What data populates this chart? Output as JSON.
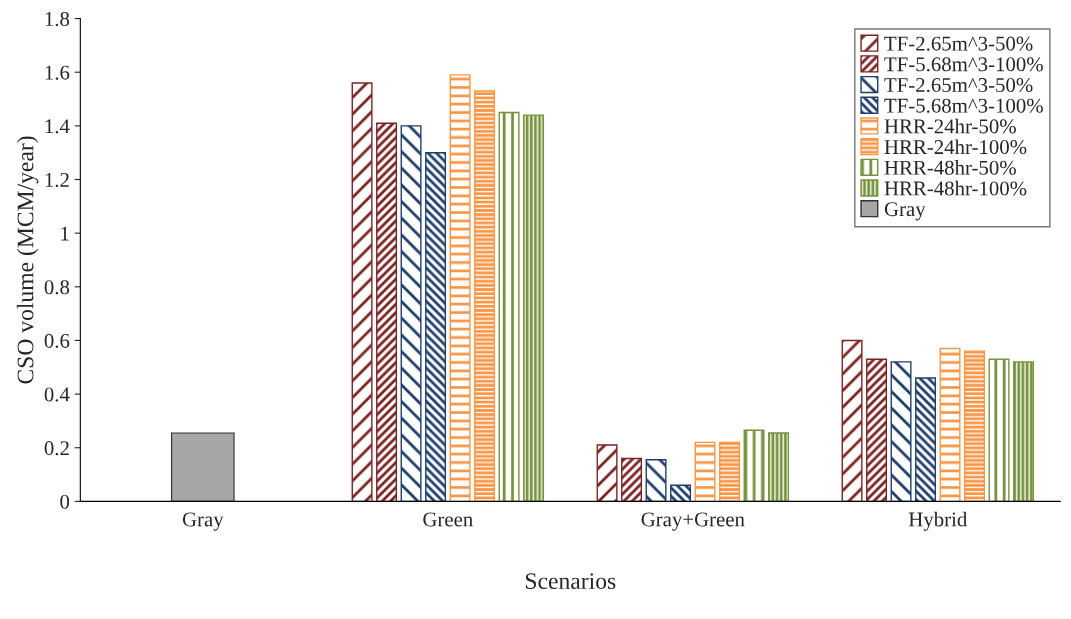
{
  "chart_data": {
    "type": "bar",
    "xlabel": "Scenarios",
    "ylabel": "CSO volume (MCM/year)",
    "categories": [
      "Gray",
      "Green",
      "Gray+Green",
      "Hybrid"
    ],
    "series": [
      {
        "name": "TF-2.65m^3-50%",
        "color": "#7b2323",
        "values": [
          null,
          1.56,
          0.21,
          0.6
        ]
      },
      {
        "name": "TF-5.68m^3-100%",
        "color": "#7b2323",
        "values": [
          null,
          1.41,
          0.16,
          0.53
        ]
      },
      {
        "name": "TF-2.65m^3-50%",
        "color": "#1f3f6b",
        "values": [
          null,
          1.4,
          0.155,
          0.52
        ]
      },
      {
        "name": "TF-5.68m^3-100%",
        "color": "#1f3f6b",
        "values": [
          null,
          1.3,
          0.06,
          0.46
        ]
      },
      {
        "name": "HRR-24hr-50%",
        "color": "#f79646",
        "values": [
          null,
          1.59,
          0.22,
          0.57
        ]
      },
      {
        "name": "HRR-24hr-100%",
        "color": "#f79646",
        "values": [
          null,
          1.53,
          0.22,
          0.56
        ]
      },
      {
        "name": "HRR-48hr-50%",
        "color": "#76923c",
        "values": [
          null,
          1.45,
          0.265,
          0.53
        ]
      },
      {
        "name": "HRR-48hr-100%",
        "color": "#76923c",
        "values": [
          null,
          1.44,
          0.255,
          0.52
        ]
      },
      {
        "name": "Gray",
        "color": "#a6a6a6",
        "values": [
          0.255,
          null,
          null,
          null
        ]
      }
    ],
    "ylim": [
      0,
      1.8
    ],
    "yticks": [
      0,
      0.2,
      0.4,
      0.6,
      0.8,
      1,
      1.2,
      1.4,
      1.6,
      1.8
    ],
    "legend": "top right",
    "grid": false
  }
}
